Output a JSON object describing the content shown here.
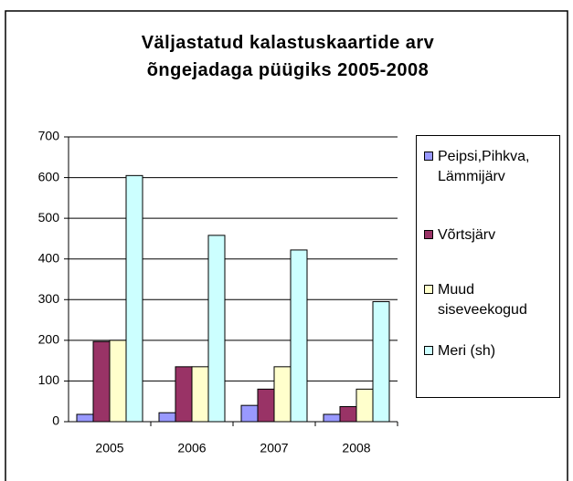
{
  "chart_data": {
    "type": "bar",
    "title": "Väljastatud kalastuskaartide arv õngejadaga püügiks 2005-2008",
    "categories": [
      "2005",
      "2006",
      "2007",
      "2008"
    ],
    "series": [
      {
        "name": "Peipsi,Pihkva, Lämmijärv",
        "color": "#9999ff",
        "values": [
          18,
          22,
          40,
          18
        ]
      },
      {
        "name": "Võrtsjärv",
        "color": "#993366",
        "values": [
          197,
          135,
          80,
          37
        ]
      },
      {
        "name": "Muud siseveekogud",
        "color": "#ffffcc",
        "values": [
          200,
          135,
          135,
          80
        ]
      },
      {
        "name": "Meri (sh)",
        "color": "#ccffff",
        "values": [
          605,
          458,
          422,
          295
        ]
      }
    ],
    "ylim": [
      0,
      700
    ],
    "yticks": [
      0,
      100,
      200,
      300,
      400,
      500,
      600,
      700
    ],
    "grid": true,
    "legend": "right"
  }
}
